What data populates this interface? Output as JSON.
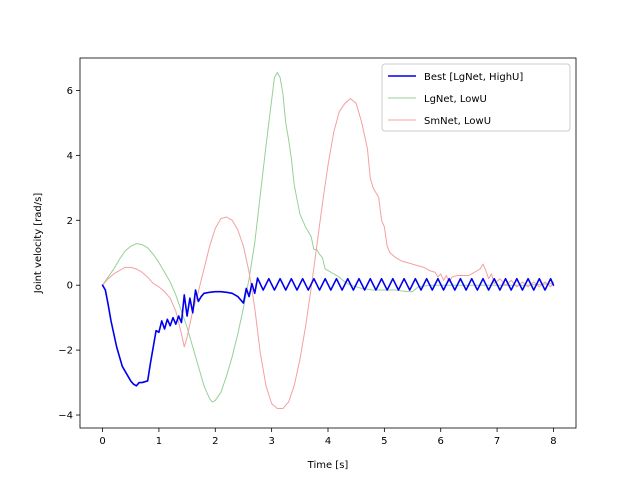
{
  "chart_data": {
    "type": "line",
    "title": "",
    "xlabel": "Time [s]",
    "ylabel": "Joint velocity [rad/s]",
    "xlim": [
      -0.4,
      8.4
    ],
    "ylim": [
      -4.4,
      7.0
    ],
    "x_ticks": [
      0,
      1,
      2,
      3,
      4,
      5,
      6,
      7,
      8
    ],
    "y_ticks": [
      -4,
      -2,
      0,
      2,
      4,
      6
    ],
    "grid": false,
    "legend": "top-right",
    "series": [
      {
        "name": "Best [LgNet, HighU]",
        "color": "#0000ee",
        "points": [
          [
            0.0,
            0.0
          ],
          [
            0.05,
            -0.15
          ],
          [
            0.1,
            -0.6
          ],
          [
            0.15,
            -1.1
          ],
          [
            0.2,
            -1.5
          ],
          [
            0.25,
            -1.9
          ],
          [
            0.3,
            -2.2
          ],
          [
            0.35,
            -2.5
          ],
          [
            0.4,
            -2.65
          ],
          [
            0.45,
            -2.8
          ],
          [
            0.5,
            -2.95
          ],
          [
            0.55,
            -3.05
          ],
          [
            0.6,
            -3.1
          ],
          [
            0.65,
            -3.0
          ],
          [
            0.7,
            -3.0
          ],
          [
            0.8,
            -2.95
          ],
          [
            0.85,
            -2.4
          ],
          [
            0.9,
            -1.9
          ],
          [
            0.95,
            -1.4
          ],
          [
            1.0,
            -1.45
          ],
          [
            1.05,
            -1.1
          ],
          [
            1.1,
            -1.35
          ],
          [
            1.15,
            -1.05
          ],
          [
            1.2,
            -1.25
          ],
          [
            1.25,
            -1.0
          ],
          [
            1.3,
            -1.2
          ],
          [
            1.35,
            -0.95
          ],
          [
            1.4,
            -1.15
          ],
          [
            1.45,
            -0.3
          ],
          [
            1.5,
            -0.95
          ],
          [
            1.55,
            -0.4
          ],
          [
            1.6,
            -0.85
          ],
          [
            1.65,
            -0.15
          ],
          [
            1.7,
            -0.5
          ],
          [
            1.75,
            -0.35
          ],
          [
            1.8,
            -0.25
          ],
          [
            1.9,
            -0.22
          ],
          [
            2.0,
            -0.2
          ],
          [
            2.1,
            -0.2
          ],
          [
            2.2,
            -0.22
          ],
          [
            2.3,
            -0.25
          ],
          [
            2.4,
            -0.35
          ],
          [
            2.5,
            -0.55
          ],
          [
            2.55,
            -0.1
          ],
          [
            2.6,
            -0.35
          ],
          [
            2.65,
            0.05
          ],
          [
            2.7,
            -0.25
          ],
          [
            2.75,
            0.22
          ],
          [
            2.85,
            -0.15
          ],
          [
            2.95,
            0.2
          ],
          [
            3.05,
            -0.15
          ],
          [
            3.15,
            0.2
          ],
          [
            3.25,
            -0.15
          ],
          [
            3.35,
            0.2
          ],
          [
            3.45,
            -0.15
          ],
          [
            3.55,
            0.2
          ],
          [
            3.65,
            -0.15
          ],
          [
            3.75,
            0.2
          ],
          [
            3.85,
            -0.15
          ],
          [
            3.95,
            0.2
          ],
          [
            4.05,
            -0.15
          ],
          [
            4.15,
            0.2
          ],
          [
            4.25,
            -0.15
          ],
          [
            4.35,
            0.2
          ],
          [
            4.45,
            -0.15
          ],
          [
            4.55,
            0.2
          ],
          [
            4.65,
            -0.15
          ],
          [
            4.75,
            0.2
          ],
          [
            4.85,
            -0.15
          ],
          [
            4.95,
            0.2
          ],
          [
            5.05,
            -0.15
          ],
          [
            5.15,
            0.2
          ],
          [
            5.25,
            -0.15
          ],
          [
            5.35,
            0.2
          ],
          [
            5.45,
            -0.15
          ],
          [
            5.55,
            0.2
          ],
          [
            5.65,
            -0.15
          ],
          [
            5.75,
            0.2
          ],
          [
            5.85,
            -0.15
          ],
          [
            5.95,
            0.2
          ],
          [
            6.05,
            -0.15
          ],
          [
            6.15,
            0.2
          ],
          [
            6.25,
            -0.15
          ],
          [
            6.35,
            0.2
          ],
          [
            6.45,
            -0.15
          ],
          [
            6.55,
            0.2
          ],
          [
            6.65,
            -0.15
          ],
          [
            6.75,
            0.2
          ],
          [
            6.85,
            -0.15
          ],
          [
            6.95,
            0.2
          ],
          [
            7.05,
            -0.15
          ],
          [
            7.15,
            0.2
          ],
          [
            7.25,
            -0.15
          ],
          [
            7.35,
            0.2
          ],
          [
            7.45,
            -0.15
          ],
          [
            7.55,
            0.2
          ],
          [
            7.65,
            -0.15
          ],
          [
            7.75,
            0.2
          ],
          [
            7.85,
            -0.15
          ],
          [
            7.95,
            0.2
          ],
          [
            8.0,
            0.0
          ]
        ]
      },
      {
        "name": "LgNet, LowU",
        "color": "#98cf98",
        "points": [
          [
            0.0,
            0.0
          ],
          [
            0.1,
            0.25
          ],
          [
            0.2,
            0.5
          ],
          [
            0.3,
            0.8
          ],
          [
            0.4,
            1.05
          ],
          [
            0.5,
            1.2
          ],
          [
            0.6,
            1.28
          ],
          [
            0.7,
            1.25
          ],
          [
            0.8,
            1.15
          ],
          [
            0.9,
            0.95
          ],
          [
            1.0,
            0.7
          ],
          [
            1.1,
            0.4
          ],
          [
            1.2,
            0.1
          ],
          [
            1.3,
            -0.3
          ],
          [
            1.4,
            -0.8
          ],
          [
            1.5,
            -1.3
          ],
          [
            1.6,
            -1.9
          ],
          [
            1.7,
            -2.5
          ],
          [
            1.8,
            -3.1
          ],
          [
            1.9,
            -3.5
          ],
          [
            1.95,
            -3.6
          ],
          [
            2.0,
            -3.55
          ],
          [
            2.1,
            -3.3
          ],
          [
            2.2,
            -2.8
          ],
          [
            2.3,
            -2.2
          ],
          [
            2.4,
            -1.5
          ],
          [
            2.5,
            -0.7
          ],
          [
            2.6,
            0.2
          ],
          [
            2.7,
            1.3
          ],
          [
            2.8,
            2.8
          ],
          [
            2.9,
            4.3
          ],
          [
            3.0,
            5.7
          ],
          [
            3.05,
            6.4
          ],
          [
            3.1,
            6.55
          ],
          [
            3.15,
            6.4
          ],
          [
            3.2,
            5.9
          ],
          [
            3.25,
            5.0
          ],
          [
            3.3,
            4.5
          ],
          [
            3.35,
            3.9
          ],
          [
            3.4,
            3.1
          ],
          [
            3.5,
            2.2
          ],
          [
            3.6,
            1.8
          ],
          [
            3.7,
            1.5
          ],
          [
            3.75,
            1.1
          ],
          [
            3.8,
            1.1
          ],
          [
            3.85,
            0.95
          ],
          [
            3.9,
            0.85
          ],
          [
            3.95,
            0.5
          ],
          [
            4.0,
            0.45
          ],
          [
            4.1,
            0.35
          ],
          [
            4.2,
            0.25
          ],
          [
            4.3,
            0.1
          ],
          [
            4.4,
            0.0
          ],
          [
            4.6,
            -0.1
          ],
          [
            4.8,
            -0.15
          ],
          [
            5.0,
            -0.15
          ],
          [
            5.2,
            -0.15
          ],
          [
            5.4,
            -0.2
          ],
          [
            5.5,
            -0.2
          ],
          [
            5.6,
            -0.05
          ],
          [
            5.8,
            0.0
          ],
          [
            6.0,
            0.0
          ],
          [
            6.5,
            0.0
          ],
          [
            7.0,
            0.0
          ],
          [
            7.5,
            0.0
          ],
          [
            8.0,
            0.05
          ]
        ]
      },
      {
        "name": "SmNet, LowU",
        "color": "#f4a0a0",
        "points": [
          [
            0.0,
            0.0
          ],
          [
            0.1,
            0.2
          ],
          [
            0.2,
            0.35
          ],
          [
            0.3,
            0.45
          ],
          [
            0.4,
            0.55
          ],
          [
            0.5,
            0.55
          ],
          [
            0.6,
            0.5
          ],
          [
            0.7,
            0.4
          ],
          [
            0.8,
            0.25
          ],
          [
            0.9,
            0.05
          ],
          [
            1.0,
            -0.05
          ],
          [
            1.1,
            -0.2
          ],
          [
            1.2,
            -0.4
          ],
          [
            1.3,
            -0.8
          ],
          [
            1.4,
            -1.5
          ],
          [
            1.45,
            -1.9
          ],
          [
            1.5,
            -1.6
          ],
          [
            1.6,
            -0.8
          ],
          [
            1.7,
            -0.2
          ],
          [
            1.8,
            0.5
          ],
          [
            1.9,
            1.2
          ],
          [
            2.0,
            1.75
          ],
          [
            2.1,
            2.05
          ],
          [
            2.2,
            2.1
          ],
          [
            2.3,
            2.0
          ],
          [
            2.4,
            1.7
          ],
          [
            2.5,
            1.2
          ],
          [
            2.6,
            0.4
          ],
          [
            2.7,
            -0.7
          ],
          [
            2.8,
            -2.1
          ],
          [
            2.9,
            -3.1
          ],
          [
            3.0,
            -3.65
          ],
          [
            3.1,
            -3.8
          ],
          [
            3.2,
            -3.8
          ],
          [
            3.3,
            -3.6
          ],
          [
            3.4,
            -3.1
          ],
          [
            3.5,
            -2.3
          ],
          [
            3.6,
            -1.3
          ],
          [
            3.7,
            -0.1
          ],
          [
            3.8,
            1.2
          ],
          [
            3.9,
            2.5
          ],
          [
            4.0,
            3.7
          ],
          [
            4.1,
            4.7
          ],
          [
            4.2,
            5.35
          ],
          [
            4.3,
            5.6
          ],
          [
            4.4,
            5.75
          ],
          [
            4.5,
            5.6
          ],
          [
            4.6,
            5.0
          ],
          [
            4.7,
            4.2
          ],
          [
            4.75,
            3.3
          ],
          [
            4.8,
            3.0
          ],
          [
            4.9,
            2.7
          ],
          [
            4.95,
            2.0
          ],
          [
            5.0,
            1.8
          ],
          [
            5.05,
            1.2
          ],
          [
            5.1,
            1.0
          ],
          [
            5.2,
            0.85
          ],
          [
            5.3,
            0.75
          ],
          [
            5.4,
            0.7
          ],
          [
            5.5,
            0.65
          ],
          [
            5.6,
            0.6
          ],
          [
            5.7,
            0.55
          ],
          [
            5.8,
            0.45
          ],
          [
            5.9,
            0.4
          ],
          [
            5.95,
            0.25
          ],
          [
            6.0,
            0.35
          ],
          [
            6.05,
            0.15
          ],
          [
            6.1,
            0.3
          ],
          [
            6.15,
            0.1
          ],
          [
            6.2,
            0.25
          ],
          [
            6.3,
            0.3
          ],
          [
            6.5,
            0.3
          ],
          [
            6.6,
            0.4
          ],
          [
            6.7,
            0.5
          ],
          [
            6.75,
            0.65
          ],
          [
            6.8,
            0.45
          ],
          [
            6.85,
            0.2
          ],
          [
            6.9,
            0.35
          ],
          [
            6.95,
            0.05
          ],
          [
            7.05,
            0.2
          ],
          [
            7.15,
            0.0
          ],
          [
            7.25,
            0.15
          ],
          [
            7.35,
            -0.05
          ],
          [
            7.45,
            0.1
          ],
          [
            7.55,
            -0.05
          ],
          [
            7.65,
            0.1
          ],
          [
            7.75,
            -0.05
          ],
          [
            7.85,
            0.1
          ],
          [
            7.95,
            -0.05
          ],
          [
            8.0,
            0.1
          ]
        ]
      }
    ]
  }
}
